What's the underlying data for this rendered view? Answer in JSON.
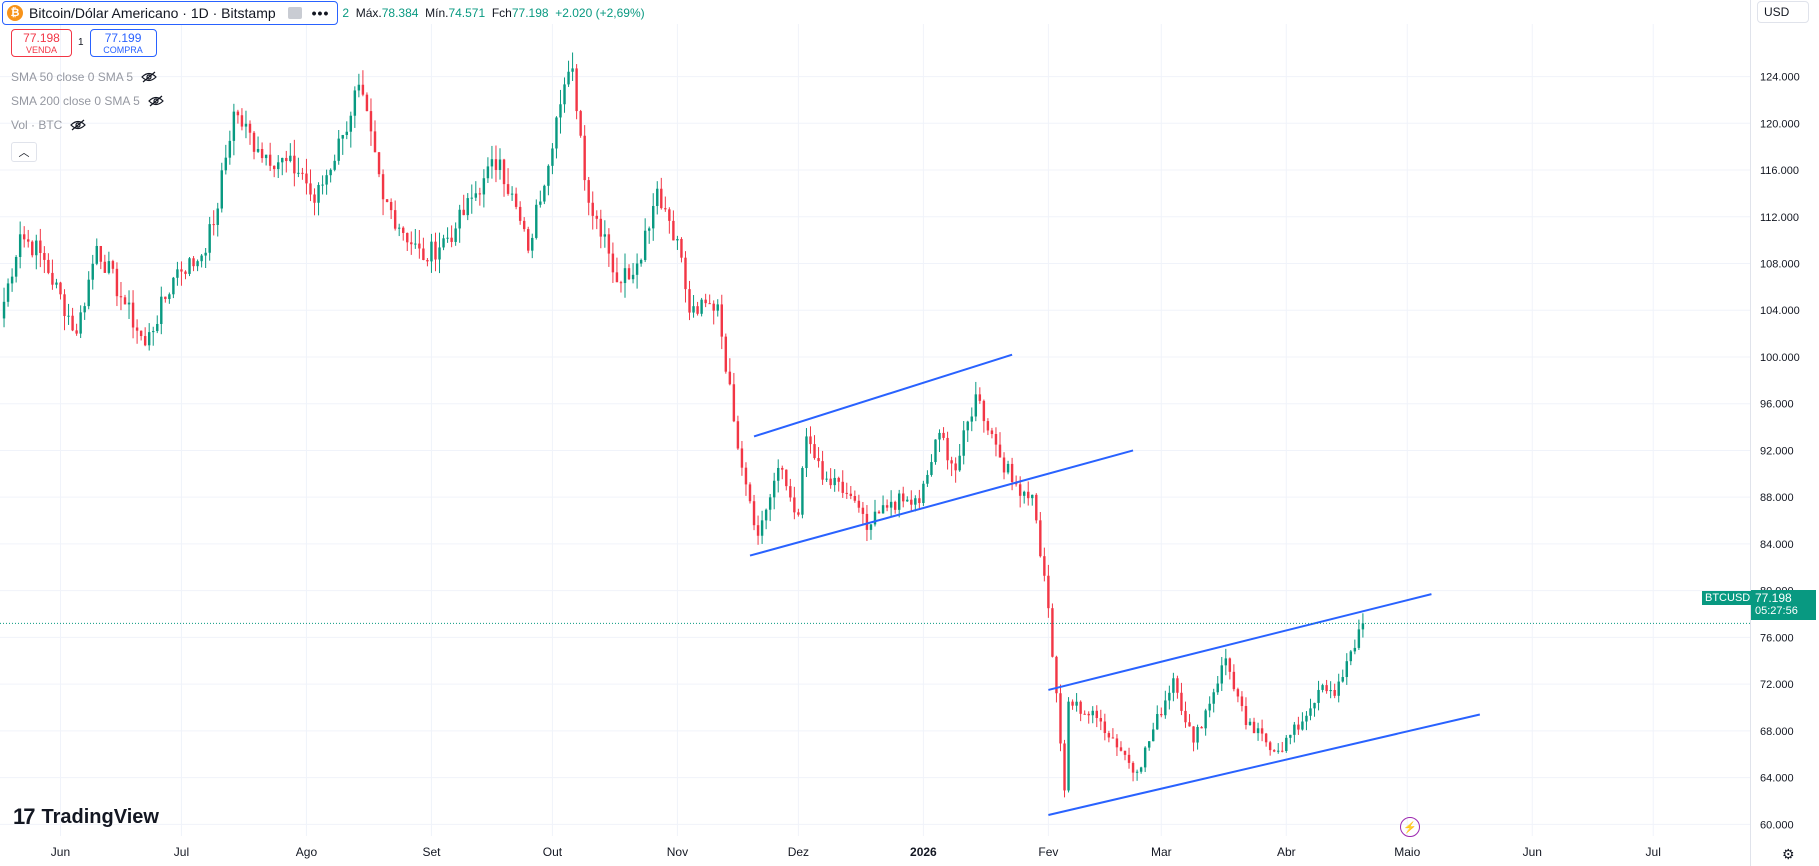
{
  "header": {
    "coin_symbol": "₿",
    "title": "Bitcoin/Dólar Americano · 1D · Bitstamp",
    "more": "•••",
    "ohlc_open_label": "2",
    "high_label": "Máx.",
    "high_value": "78.384",
    "low_label": "Mín.",
    "low_value": "74.571",
    "close_label": "Fch",
    "close_value": "77.198",
    "change": "+2.020 (+2,69%)"
  },
  "trade": {
    "sell_price": "77.198",
    "sell_label": "VENDA",
    "spread": "1",
    "buy_price": "77.199",
    "buy_label": "COMPRA"
  },
  "indicators": [
    {
      "label": "SMA 50 close 0 SMA 5"
    },
    {
      "label": "SMA 200 close 0 SMA 5"
    },
    {
      "label": "Vol · BTC"
    }
  ],
  "currency": "USD",
  "logo_text": "TradingView",
  "last_price": {
    "ticker": "BTCUSD",
    "value": "77.198",
    "countdown": "05:27:56"
  },
  "colors": {
    "up": "#089981",
    "down": "#f23645",
    "trendline": "#2962ff",
    "price_line": "#089981"
  },
  "chart_data": {
    "type": "candlestick",
    "title": "Bitcoin/Dólar Americano · 1D · Bitstamp",
    "ylim": [
      59000,
      128500
    ],
    "xlim": [
      "2025-05-17",
      "2026-07-25"
    ],
    "y_ticks": [
      60000,
      64000,
      68000,
      72000,
      76000,
      80000,
      84000,
      88000,
      92000,
      96000,
      100000,
      104000,
      108000,
      112000,
      116000,
      120000,
      124000
    ],
    "y_tick_labels": [
      "60.000",
      "64.000",
      "68.000",
      "72.000",
      "76.000",
      "80.000",
      "84.000",
      "88.000",
      "92.000",
      "96.000",
      "100.000",
      "104.000",
      "108.000",
      "112.000",
      "116.000",
      "120.000",
      "124.000"
    ],
    "x_ticks": [
      {
        "label": "Jun",
        "date": "2025-06-01"
      },
      {
        "label": "Jul",
        "date": "2025-07-01"
      },
      {
        "label": "Ago",
        "date": "2025-08-01"
      },
      {
        "label": "Set",
        "date": "2025-09-01"
      },
      {
        "label": "Out",
        "date": "2025-10-01"
      },
      {
        "label": "Nov",
        "date": "2025-11-01"
      },
      {
        "label": "Dez",
        "date": "2025-12-01"
      },
      {
        "label": "2026",
        "date": "2026-01-01",
        "bold": true
      },
      {
        "label": "Fev",
        "date": "2026-02-01"
      },
      {
        "label": "Mar",
        "date": "2026-03-01"
      },
      {
        "label": "Abr",
        "date": "2026-04-01"
      },
      {
        "label": "Maio",
        "date": "2026-05-01"
      },
      {
        "label": "Jun",
        "date": "2026-06-01"
      },
      {
        "label": "Jul",
        "date": "2026-07-01"
      }
    ],
    "current_price": 77198,
    "close_path": [
      [
        "2025-05-17",
        103300
      ],
      [
        "2025-05-22",
        110500
      ],
      [
        "2025-05-27",
        108900
      ],
      [
        "2025-06-05",
        102000
      ],
      [
        "2025-06-10",
        109500
      ],
      [
        "2025-06-17",
        104500
      ],
      [
        "2025-06-22",
        101000
      ],
      [
        "2025-06-30",
        107500
      ],
      [
        "2025-07-05",
        108200
      ],
      [
        "2025-07-09",
        111300
      ],
      [
        "2025-07-14",
        121000
      ],
      [
        "2025-07-20",
        117800
      ],
      [
        "2025-07-31",
        115700
      ],
      [
        "2025-08-03",
        113200
      ],
      [
        "2025-08-10",
        119000
      ],
      [
        "2025-08-14",
        123300
      ],
      [
        "2025-08-20",
        113500
      ],
      [
        "2025-08-30",
        108300
      ],
      [
        "2025-09-07",
        111000
      ],
      [
        "2025-09-14",
        115300
      ],
      [
        "2025-09-18",
        116900
      ],
      [
        "2025-09-25",
        109100
      ],
      [
        "2025-10-02",
        120500
      ],
      [
        "2025-10-06",
        124700
      ],
      [
        "2025-10-10",
        113200
      ],
      [
        "2025-10-14",
        110500
      ],
      [
        "2025-10-17",
        106400
      ],
      [
        "2025-10-22",
        108000
      ],
      [
        "2025-10-27",
        114400
      ],
      [
        "2025-11-01",
        110100
      ],
      [
        "2025-11-04",
        103800
      ],
      [
        "2025-11-11",
        104500
      ],
      [
        "2025-11-15",
        94500
      ],
      [
        "2025-11-21",
        84700
      ],
      [
        "2025-11-26",
        90500
      ],
      [
        "2025-12-01",
        86500
      ],
      [
        "2025-12-03",
        93200
      ],
      [
        "2025-12-07",
        89500
      ],
      [
        "2025-12-14",
        88100
      ],
      [
        "2025-12-18",
        85200
      ],
      [
        "2025-12-24",
        87600
      ],
      [
        "2025-12-31",
        87500
      ],
      [
        "2026-01-05",
        93500
      ],
      [
        "2026-01-09",
        90300
      ],
      [
        "2026-01-14",
        96800
      ],
      [
        "2026-01-19",
        92500
      ],
      [
        "2026-01-23",
        89300
      ],
      [
        "2026-01-28",
        88200
      ],
      [
        "2026-02-01",
        78500
      ],
      [
        "2026-02-05",
        62900
      ],
      [
        "2026-02-06",
        70500
      ],
      [
        "2026-02-14",
        68800
      ],
      [
        "2026-02-23",
        64500
      ],
      [
        "2026-03-04",
        72500
      ],
      [
        "2026-03-09",
        67000
      ],
      [
        "2026-03-17",
        74200
      ],
      [
        "2026-03-22",
        68500
      ],
      [
        "2026-03-30",
        66300
      ],
      [
        "2026-04-05",
        68800
      ],
      [
        "2026-04-09",
        71500
      ],
      [
        "2026-04-13",
        71000
      ],
      [
        "2026-04-17",
        74800
      ],
      [
        "2026-04-20",
        77198
      ]
    ],
    "trendlines": [
      {
        "from": [
          "2025-11-20",
          93200
        ],
        "to": [
          "2026-01-23",
          100200
        ]
      },
      {
        "from": [
          "2025-11-19",
          83000
        ],
        "to": [
          "2026-02-22",
          92000
        ]
      },
      {
        "from": [
          "2026-02-01",
          71500
        ],
        "to": [
          "2026-05-07",
          79700
        ]
      },
      {
        "from": [
          "2026-02-01",
          60800
        ],
        "to": [
          "2026-05-19",
          69400
        ]
      }
    ]
  }
}
